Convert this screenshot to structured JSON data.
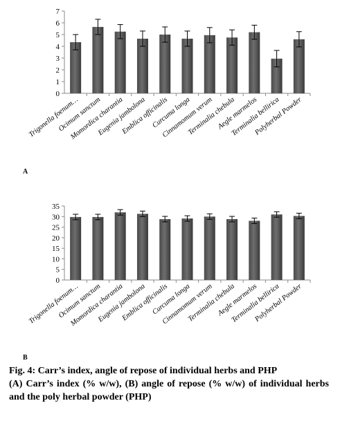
{
  "chart_data": [
    {
      "type": "bar",
      "panel_label": "A",
      "categories": [
        "Trigonella foenum…",
        "Ocimum sanctum",
        "Momordica charantia",
        "Eugenia jambolona",
        "Emblica officinalis",
        "Curcuma longa",
        "Cinnamomum verum",
        "Terminalia chebula",
        "Aegle marmelos",
        "Terminalia bellirica",
        "Polyherbal Powder"
      ],
      "values": [
        4.35,
        5.65,
        5.25,
        4.65,
        5.0,
        4.65,
        4.95,
        4.75,
        5.2,
        2.95,
        4.6
      ],
      "errors": [
        0.65,
        0.65,
        0.6,
        0.65,
        0.65,
        0.65,
        0.65,
        0.65,
        0.6,
        0.7,
        0.65
      ],
      "ylim": [
        0,
        7
      ],
      "yticks": [
        0,
        1,
        2,
        3,
        4,
        5,
        6,
        7
      ],
      "bar_color": "#6e6e6e"
    },
    {
      "type": "bar",
      "panel_label": "B",
      "categories": [
        "Trigonella foenum…",
        "Ocimum sanctum",
        "Momordica charantia",
        "Eugenia jambolona",
        "Emblica officinalis",
        "Curcuma longa",
        "Cinnamomum verum",
        "Terminalia chebula",
        "Aegle marmelos",
        "Terminalia bellirica",
        "Polyherbal Powder"
      ],
      "values": [
        29.8,
        29.8,
        32.0,
        31.3,
        28.8,
        29.1,
        30.0,
        28.8,
        28.0,
        31.0,
        30.3
      ],
      "errors": [
        1.3,
        1.3,
        1.3,
        1.3,
        1.3,
        1.3,
        1.3,
        1.3,
        1.3,
        1.3,
        1.3
      ],
      "ylim": [
        0,
        35
      ],
      "yticks": [
        0,
        5,
        10,
        15,
        20,
        25,
        30,
        35
      ],
      "bar_color": "#6e6e6e"
    }
  ],
  "caption": {
    "title": "Fig. 4: Carr’s index, angle of repose of individual herbs and PHP",
    "description": "(A) Carr’s index (% w/w), (B) angle of repose (% w/w) of individual herbs and the poly herbal powder (PHP)"
  }
}
